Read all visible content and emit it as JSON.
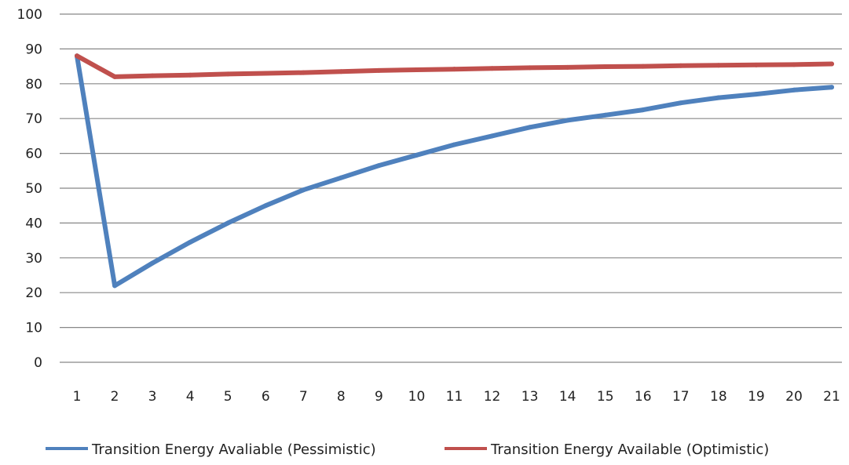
{
  "chart_data": {
    "type": "line",
    "x": [
      1,
      2,
      3,
      4,
      5,
      6,
      7,
      8,
      9,
      10,
      11,
      12,
      13,
      14,
      15,
      16,
      17,
      18,
      19,
      20,
      21
    ],
    "ylim": [
      0,
      100
    ],
    "yticks": [
      0,
      10,
      20,
      30,
      40,
      50,
      60,
      70,
      80,
      90,
      100
    ],
    "grid": true,
    "legend_position": "bottom",
    "series": [
      {
        "name": "Transition Energy Avaliable (Pessimistic)",
        "color": "#4f81bd",
        "values": [
          88,
          22,
          28.5,
          34.5,
          40,
          45,
          49.5,
          53,
          56.5,
          59.5,
          62.5,
          65,
          67.5,
          69.5,
          71,
          72.5,
          74.5,
          76,
          77,
          78.2,
          79
        ]
      },
      {
        "name": "Transition Energy Available (Optimistic)",
        "color": "#c0504d",
        "values": [
          88,
          82,
          82.3,
          82.5,
          82.8,
          83,
          83.2,
          83.5,
          83.8,
          84,
          84.2,
          84.4,
          84.6,
          84.7,
          84.9,
          85,
          85.2,
          85.3,
          85.4,
          85.5,
          85.7
        ]
      }
    ]
  }
}
